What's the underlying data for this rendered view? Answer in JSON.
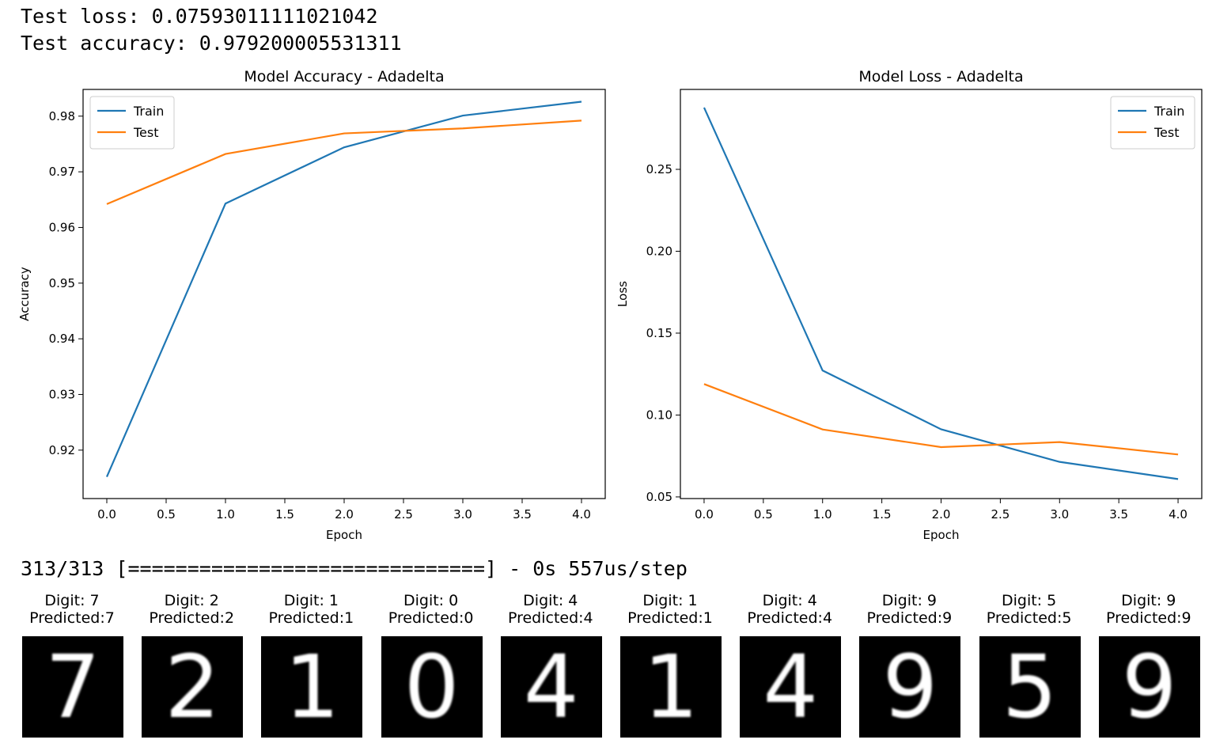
{
  "output": {
    "test_loss_line": "Test loss: 0.07593011111021042",
    "test_accuracy_line": "Test accuracy: 0.979200005531311",
    "progress_line": "313/313 [==============================] - 0s 557us/step"
  },
  "chart_data": [
    {
      "type": "line",
      "title": "Model Accuracy - Adadelta",
      "xlabel": "Epoch",
      "ylabel": "Accuracy",
      "x": [
        0,
        1,
        2,
        3,
        4
      ],
      "xticks": [
        "0.0",
        "0.5",
        "1.0",
        "1.5",
        "2.0",
        "2.5",
        "3.0",
        "3.5",
        "4.0"
      ],
      "yticks": [
        "0.92",
        "0.93",
        "0.94",
        "0.95",
        "0.96",
        "0.97",
        "0.98"
      ],
      "xlim": [
        -0.2,
        4.2
      ],
      "ylim": [
        0.9113,
        0.9848
      ],
      "legend": "top-left",
      "grid": false,
      "series": [
        {
          "name": "Train",
          "color": "#1f77b4",
          "values": [
            0.9152,
            0.9643,
            0.9744,
            0.9801,
            0.9826
          ]
        },
        {
          "name": "Test",
          "color": "#ff7f0e",
          "values": [
            0.9642,
            0.9732,
            0.9769,
            0.9778,
            0.9792
          ]
        }
      ]
    },
    {
      "type": "line",
      "title": "Model Loss - Adadelta",
      "xlabel": "Epoch",
      "ylabel": "Loss",
      "x": [
        0,
        1,
        2,
        3,
        4
      ],
      "xticks": [
        "0.0",
        "0.5",
        "1.0",
        "1.5",
        "2.0",
        "2.5",
        "3.0",
        "3.5",
        "4.0"
      ],
      "yticks": [
        "0.05",
        "0.10",
        "0.15",
        "0.20",
        "0.25"
      ],
      "xlim": [
        -0.2,
        4.2
      ],
      "ylim": [
        0.049,
        0.2988
      ],
      "legend": "top-right",
      "grid": false,
      "series": [
        {
          "name": "Train",
          "color": "#1f77b4",
          "values": [
            0.2877,
            0.1272,
            0.0913,
            0.0714,
            0.0609
          ]
        },
        {
          "name": "Test",
          "color": "#ff7f0e",
          "values": [
            0.1189,
            0.0912,
            0.0804,
            0.0835,
            0.0759
          ]
        }
      ]
    }
  ],
  "digits": [
    {
      "title": "Digit: 7",
      "predicted": "Predicted:7",
      "glyph": "7"
    },
    {
      "title": "Digit: 2",
      "predicted": "Predicted:2",
      "glyph": "2"
    },
    {
      "title": "Digit: 1",
      "predicted": "Predicted:1",
      "glyph": "1"
    },
    {
      "title": "Digit: 0",
      "predicted": "Predicted:0",
      "glyph": "0"
    },
    {
      "title": "Digit: 4",
      "predicted": "Predicted:4",
      "glyph": "4"
    },
    {
      "title": "Digit: 1",
      "predicted": "Predicted:1",
      "glyph": "1"
    },
    {
      "title": "Digit: 4",
      "predicted": "Predicted:4",
      "glyph": "4"
    },
    {
      "title": "Digit: 9",
      "predicted": "Predicted:9",
      "glyph": "9"
    },
    {
      "title": "Digit: 5",
      "predicted": "Predicted:5",
      "glyph": "5"
    },
    {
      "title": "Digit: 9",
      "predicted": "Predicted:9",
      "glyph": "9"
    }
  ]
}
